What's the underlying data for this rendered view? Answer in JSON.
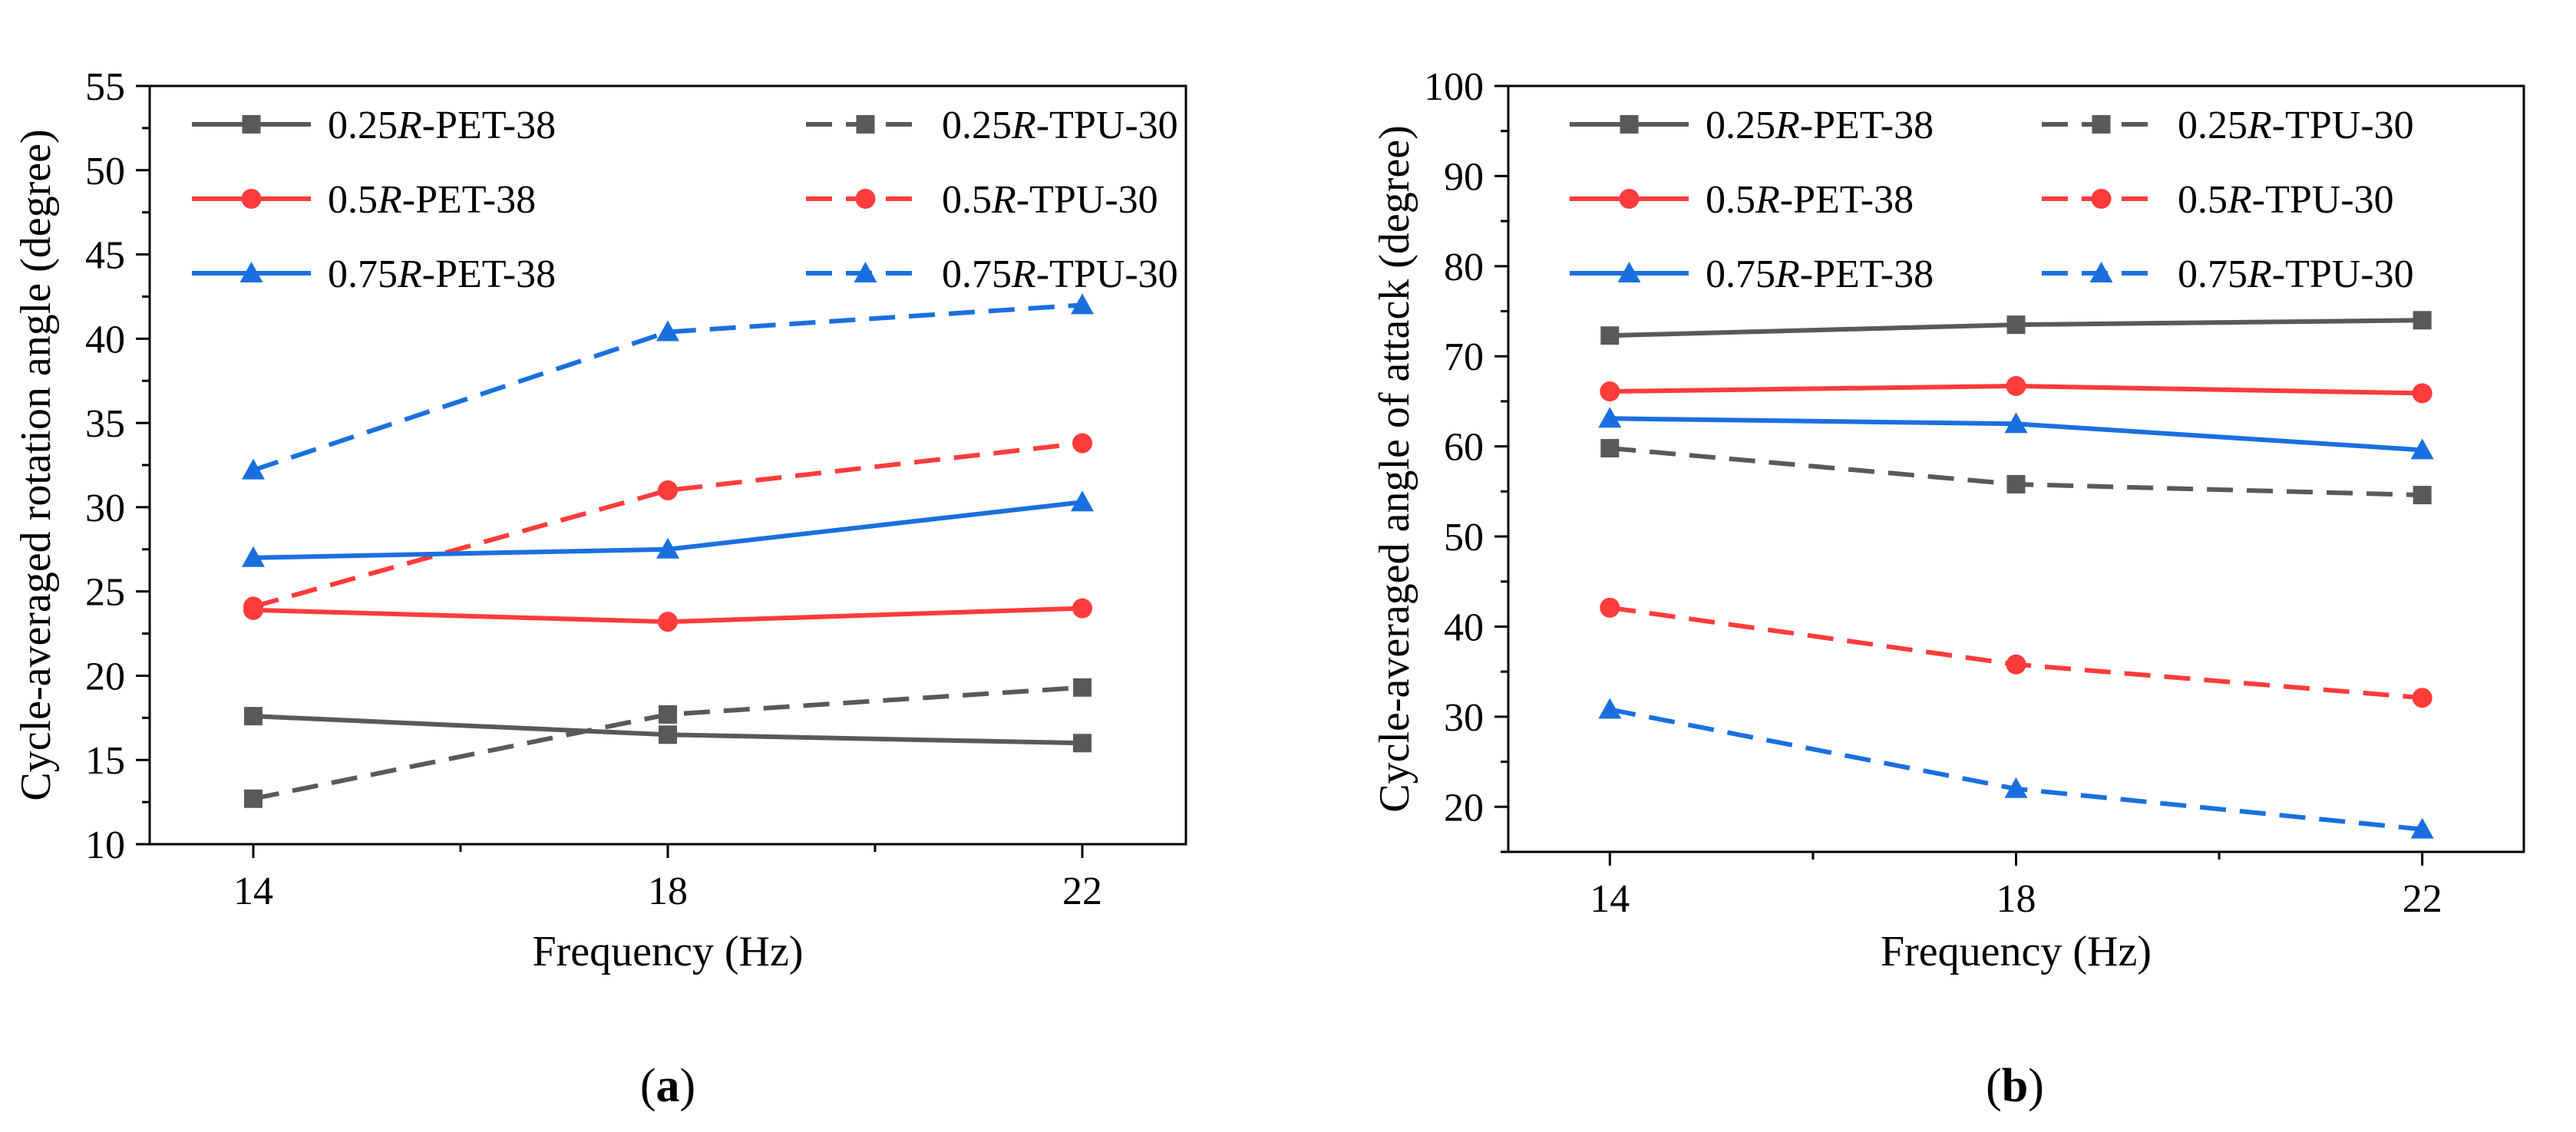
{
  "chart_data": [
    {
      "type": "line",
      "panel": "a",
      "panel_label": "a",
      "xlabel": "Frequency (Hz)",
      "ylabel": "Cycle-averaged rotation angle (degree)",
      "categories": [
        "14",
        "18",
        "22"
      ],
      "x": [
        14,
        18,
        22
      ],
      "xlim": [
        13,
        23
      ],
      "ylim": [
        10,
        55
      ],
      "yticks": [
        10,
        15,
        20,
        25,
        30,
        35,
        40,
        45,
        50,
        55
      ],
      "series": [
        {
          "name": "0.25R-PET-38",
          "prefix": "0.25",
          "suffix": "-PET-38",
          "color": "#595959",
          "marker": "square",
          "dash": "solid",
          "values": [
            17.6,
            16.5,
            16.0
          ]
        },
        {
          "name": "0.25R-TPU-30",
          "prefix": "0.25",
          "suffix": "-TPU-30",
          "color": "#595959",
          "marker": "square",
          "dash": "dashed",
          "values": [
            12.7,
            17.7,
            19.3
          ]
        },
        {
          "name": "0.5R-PET-38",
          "prefix": "0.5",
          "suffix": "-PET-38",
          "color": "#ff3b3b",
          "marker": "circle",
          "dash": "solid",
          "values": [
            23.9,
            23.2,
            24.0
          ]
        },
        {
          "name": "0.5R-TPU-30",
          "prefix": "0.5",
          "suffix": "-TPU-30",
          "color": "#ff3b3b",
          "marker": "circle",
          "dash": "dashed",
          "values": [
            24.1,
            31.0,
            33.8
          ]
        },
        {
          "name": "0.75R-PET-38",
          "prefix": "0.75",
          "suffix": "-PET-38",
          "color": "#1a6fdf",
          "marker": "triangle",
          "dash": "solid",
          "values": [
            27.0,
            27.5,
            30.3
          ]
        },
        {
          "name": "0.75R-TPU-30",
          "prefix": "0.75",
          "suffix": "-TPU-30",
          "color": "#1a6fdf",
          "marker": "triangle",
          "dash": "dashed",
          "values": [
            32.2,
            40.4,
            42.0
          ]
        }
      ]
    },
    {
      "type": "line",
      "panel": "b",
      "panel_label": "b",
      "xlabel": "Frequency (Hz)",
      "ylabel": "Cycle-averaged angle of attack (degree)",
      "categories": [
        "14",
        "18",
        "22"
      ],
      "x": [
        14,
        18,
        22
      ],
      "xlim": [
        13,
        23
      ],
      "ylim": [
        15,
        100
      ],
      "yticks": [
        20,
        30,
        40,
        50,
        60,
        70,
        80,
        90,
        100
      ],
      "series": [
        {
          "name": "0.25R-PET-38",
          "prefix": "0.25",
          "suffix": "-PET-38",
          "color": "#595959",
          "marker": "square",
          "dash": "solid",
          "values": [
            72.3,
            73.5,
            74.0
          ]
        },
        {
          "name": "0.25R-TPU-30",
          "prefix": "0.25",
          "suffix": "-TPU-30",
          "color": "#595959",
          "marker": "square",
          "dash": "dashed",
          "values": [
            59.8,
            55.8,
            54.6
          ]
        },
        {
          "name": "0.5R-PET-38",
          "prefix": "0.5",
          "suffix": "-PET-38",
          "color": "#ff3b3b",
          "marker": "circle",
          "dash": "solid",
          "values": [
            66.1,
            66.7,
            65.9
          ]
        },
        {
          "name": "0.5R-TPU-30",
          "prefix": "0.5",
          "suffix": "-TPU-30",
          "color": "#ff3b3b",
          "marker": "circle",
          "dash": "dashed",
          "values": [
            42.1,
            35.8,
            32.1
          ]
        },
        {
          "name": "0.75R-PET-38",
          "prefix": "0.75",
          "suffix": "-PET-38",
          "color": "#1a6fdf",
          "marker": "triangle",
          "dash": "solid",
          "values": [
            63.1,
            62.5,
            59.6
          ]
        },
        {
          "name": "0.75R-TPU-30",
          "prefix": "0.75",
          "suffix": "-TPU-30",
          "color": "#1a6fdf",
          "marker": "triangle",
          "dash": "dashed",
          "values": [
            30.8,
            22.0,
            17.5
          ]
        }
      ]
    }
  ]
}
